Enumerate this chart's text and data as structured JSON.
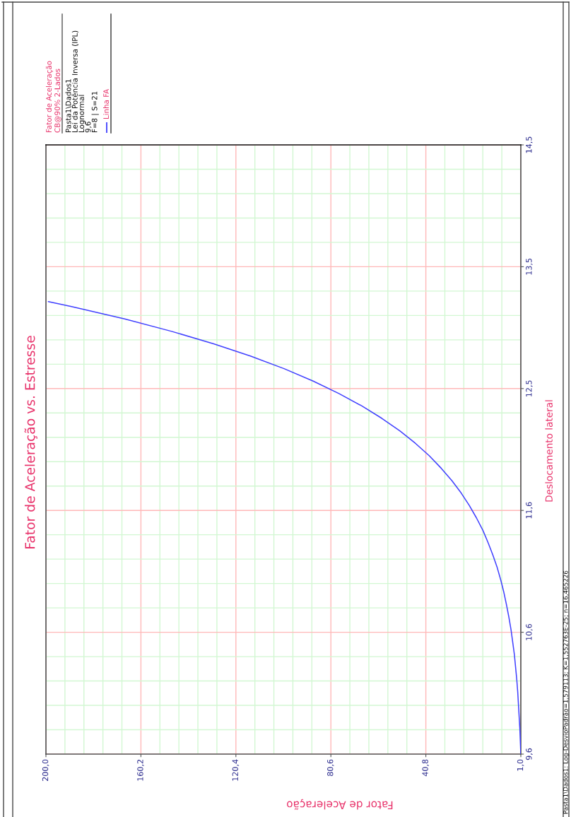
{
  "chart_data": {
    "type": "line",
    "title": "Fator de Aceleração vs. Estresse",
    "xlabel": "Fator de Aceleração",
    "ylabel": "Deslocamento lateral",
    "legend_title": "Fator de Aceleração",
    "annotations": [
      "CB@90% 2-Lados",
      "Pasta1\\Dados1",
      "Lei da Potência Inversa (IPL)",
      "Lognormal",
      "9,6",
      "F=8 | S=21",
      "Pasta1\\Dados1: Log-DesvioPadrão=1,579113; K=1,552763E-25; n=16,465226"
    ],
    "x": [
      1.0,
      1.2,
      1.4,
      1.7,
      2.0,
      2.3,
      2.7,
      3.2,
      3.7,
      4.4,
      5.1,
      6.0,
      7.0,
      8.1,
      9.4,
      10.9,
      12.7,
      14.7,
      16.9,
      19.6,
      22.6,
      26.0,
      29.9,
      34.4,
      39.4,
      45.2,
      51.7,
      59.2,
      67.6,
      77.2,
      88.0,
      100.2,
      114.1,
      129.7,
      147.3,
      167.0,
      189.3,
      199.0
    ],
    "series": [
      {
        "name": "Linha FA",
        "color": "#4040ff",
        "values": [
          9.6,
          9.7,
          9.8,
          9.9,
          10.0,
          10.1,
          10.2,
          10.3,
          10.4,
          10.5,
          10.6,
          10.7,
          10.8,
          10.9,
          11.0,
          11.1,
          11.2,
          11.3,
          11.4,
          11.5,
          11.6,
          11.7,
          11.8,
          11.9,
          12.0,
          12.1,
          12.2,
          12.3,
          12.4,
          12.5,
          12.6,
          12.7,
          12.8,
          12.9,
          13.0,
          13.1,
          13.2,
          13.24
        ]
      }
    ],
    "xlim": [
      200.0,
      1.0
    ],
    "ylim": [
      9.6,
      14.5
    ],
    "xticks": [
      {
        "value": 200.0,
        "label": "200,0"
      },
      {
        "value": 192.04,
        "label": null
      },
      {
        "value": 184.08,
        "label": null
      },
      {
        "value": 176.12,
        "label": null
      },
      {
        "value": 168.16,
        "label": null
      },
      {
        "value": 160.2,
        "label": "160,2"
      },
      {
        "value": 152.24,
        "label": null
      },
      {
        "value": 144.28,
        "label": null
      },
      {
        "value": 136.32,
        "label": null
      },
      {
        "value": 128.36,
        "label": null
      },
      {
        "value": 120.4,
        "label": "120,4"
      },
      {
        "value": 112.44,
        "label": null
      },
      {
        "value": 104.48,
        "label": null
      },
      {
        "value": 96.52,
        "label": null
      },
      {
        "value": 88.56,
        "label": null
      },
      {
        "value": 80.6,
        "label": "80,6"
      },
      {
        "value": 72.64,
        "label": null
      },
      {
        "value": 64.68,
        "label": null
      },
      {
        "value": 56.72,
        "label": null
      },
      {
        "value": 48.76,
        "label": null
      },
      {
        "value": 40.8,
        "label": "40,8"
      },
      {
        "value": 32.84,
        "label": null
      },
      {
        "value": 24.88,
        "label": null
      },
      {
        "value": 16.92,
        "label": null
      },
      {
        "value": 8.96,
        "label": null
      },
      {
        "value": 1.0,
        "label": "1,0"
      }
    ],
    "yticks": [
      {
        "value": 9.6,
        "label": "9,6"
      },
      {
        "value": 9.796,
        "label": null
      },
      {
        "value": 9.992,
        "label": null
      },
      {
        "value": 10.188,
        "label": null
      },
      {
        "value": 10.384,
        "label": null
      },
      {
        "value": 10.58,
        "label": "10,6"
      },
      {
        "value": 10.776,
        "label": null
      },
      {
        "value": 10.972,
        "label": null
      },
      {
        "value": 11.168,
        "label": null
      },
      {
        "value": 11.364,
        "label": null
      },
      {
        "value": 11.56,
        "label": "11,6"
      },
      {
        "value": 11.756,
        "label": null
      },
      {
        "value": 11.952,
        "label": null
      },
      {
        "value": 12.148,
        "label": null
      },
      {
        "value": 12.344,
        "label": null
      },
      {
        "value": 12.54,
        "label": "12,5"
      },
      {
        "value": 12.736,
        "label": null
      },
      {
        "value": 12.932,
        "label": null
      },
      {
        "value": 13.128,
        "label": null
      },
      {
        "value": 13.324,
        "label": null
      },
      {
        "value": 13.52,
        "label": "13,5"
      },
      {
        "value": 13.716,
        "label": null
      },
      {
        "value": 13.912,
        "label": null
      },
      {
        "value": 14.108,
        "label": null
      },
      {
        "value": 14.304,
        "label": null
      },
      {
        "value": 14.5,
        "label": "14,5"
      }
    ],
    "grid": true,
    "legend": "top left"
  }
}
